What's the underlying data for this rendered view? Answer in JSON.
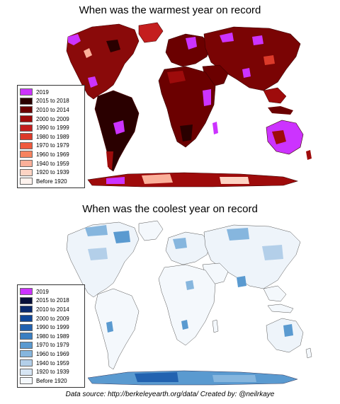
{
  "maps": {
    "warm": {
      "title": "When was the warmest year on record",
      "legend": [
        {
          "label": "2019",
          "color": "#cc33ff"
        },
        {
          "label": "2015 to 2018",
          "color": "#2a0000"
        },
        {
          "label": "2010 to 2014",
          "color": "#6b0000"
        },
        {
          "label": "2000 to 2009",
          "color": "#9e0b0b"
        },
        {
          "label": "1990 to 1999",
          "color": "#c41e1e"
        },
        {
          "label": "1980 to 1989",
          "color": "#dc3a2a"
        },
        {
          "label": "1970 to 1979",
          "color": "#ef5a3e"
        },
        {
          "label": "1960 to 1969",
          "color": "#f7835f"
        },
        {
          "label": "1940 to 1959",
          "color": "#fbb09a"
        },
        {
          "label": "1920 to 1939",
          "color": "#fdd4c4"
        },
        {
          "label": "Before 1920",
          "color": "#fff3ee"
        }
      ]
    },
    "cool": {
      "title": "When was the coolest year on record",
      "legend": [
        {
          "label": "2019",
          "color": "#cc33ff"
        },
        {
          "label": "2015 to 2018",
          "color": "#08103a"
        },
        {
          "label": "2010 to 2014",
          "color": "#0a2a6e"
        },
        {
          "label": "2000 to 2009",
          "color": "#10489a"
        },
        {
          "label": "1990 to 1999",
          "color": "#2262b0"
        },
        {
          "label": "1980 to 1989",
          "color": "#3a7fc2"
        },
        {
          "label": "1970 to 1979",
          "color": "#5a9ad0"
        },
        {
          "label": "1960 to 1969",
          "color": "#86b6de"
        },
        {
          "label": "1940 to 1959",
          "color": "#b3cfe9"
        },
        {
          "label": "1920 to 1939",
          "color": "#d6e5f4"
        },
        {
          "label": "Before 1920",
          "color": "#f4f8fc"
        }
      ]
    }
  },
  "footer": "Data source: http://berkeleyearth.org/data/   Created by: @neilrkaye"
}
